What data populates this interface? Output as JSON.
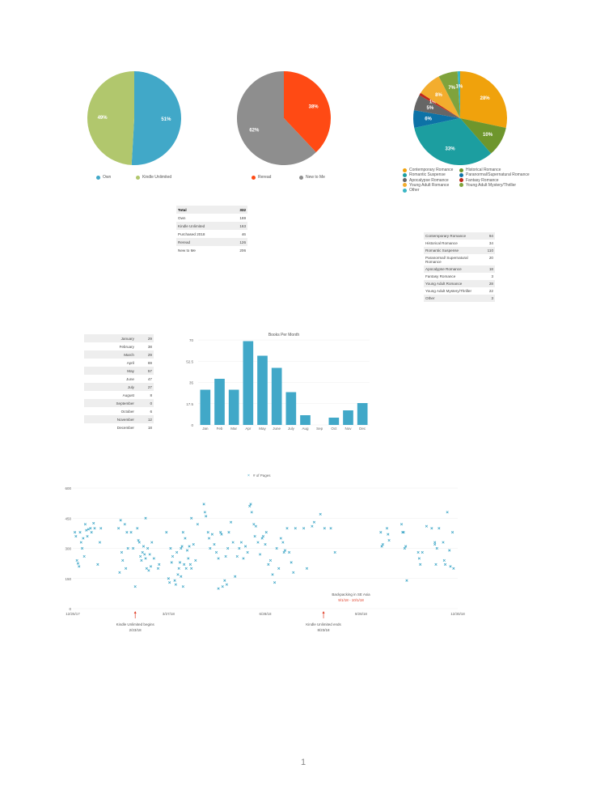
{
  "pies": [
    {
      "slices": [
        {
          "label": "Own",
          "value": 169,
          "pct": "51%",
          "color": "#41A8C8"
        },
        {
          "label": "Kindle Unlimited",
          "value": 163,
          "pct": "49%",
          "color": "#B1C76D"
        }
      ]
    },
    {
      "slices": [
        {
          "label": "Reread",
          "value": 126,
          "pct": "38%",
          "color": "#FF4A14"
        },
        {
          "label": "New to Me",
          "value": 206,
          "pct": "62%",
          "color": "#8E8E8E"
        }
      ]
    },
    {
      "slices": [
        {
          "label": "Contemporary Romance",
          "value": 94,
          "pct": "28%",
          "color": "#F0A20C"
        },
        {
          "label": "Historical Romance",
          "value": 34,
          "pct": "10%",
          "color": "#6E962C"
        },
        {
          "label": "Romantic Suspense",
          "value": 110,
          "pct": "33%",
          "color": "#1C9EA0"
        },
        {
          "label": "Paranormal/Supernatural Romance",
          "value": 20,
          "pct": "6%",
          "color": "#0D72A6"
        },
        {
          "label": "Apocalypse Romance",
          "value": 18,
          "pct": "5%",
          "color": "#666666"
        },
        {
          "label": "Fantasy Romance",
          "value": 3,
          "pct": "1%",
          "color": "#C0281B"
        },
        {
          "label": "Young Adult Romance",
          "value": 28,
          "pct": "8%",
          "color": "#F3AD2E"
        },
        {
          "label": "Young Adult Mystery/Thriller",
          "value": 22,
          "pct": "7%",
          "color": "#7FA33C"
        },
        {
          "label": "Other",
          "value": 3,
          "pct": "1%",
          "color": "#3AB6C4"
        }
      ]
    }
  ],
  "summary_table": [
    [
      "Total",
      "332"
    ],
    [
      "Own",
      "169"
    ],
    [
      "Kindle Unlimited",
      "163"
    ],
    [
      "Purchased 2018",
      "46"
    ],
    [
      "Reread",
      "126"
    ],
    [
      "New to Me",
      "206"
    ]
  ],
  "genre_table": [
    [
      "Contemporary Romance",
      "94"
    ],
    [
      "Historical Romance",
      "34"
    ],
    [
      "Romantic Suspense",
      "110"
    ],
    [
      "Paranormal/ Supernatural Romance",
      "20"
    ],
    [
      "Apocalypse Romance",
      "18"
    ],
    [
      "Fantasy Romance",
      "3"
    ],
    [
      "Young Adult Romance",
      "28"
    ],
    [
      "Young Adult Mystery/Thriller",
      "22"
    ],
    [
      "Other",
      "3"
    ]
  ],
  "month_table": [
    [
      "January",
      "29"
    ],
    [
      "February",
      "38"
    ],
    [
      "March",
      "29"
    ],
    [
      "April",
      "69"
    ],
    [
      "May",
      "57"
    ],
    [
      "June",
      "47"
    ],
    [
      "July",
      "27"
    ],
    [
      "August",
      "8"
    ],
    [
      "September",
      "0"
    ],
    [
      "October",
      "6"
    ],
    [
      "November",
      "12"
    ],
    [
      "December",
      "18"
    ]
  ],
  "chart_data": [
    {
      "type": "bar",
      "title": "Books Per Month",
      "categories": [
        "Jan",
        "Feb",
        "Mar",
        "Apr",
        "May",
        "June",
        "July",
        "Aug",
        "Sep",
        "Oct",
        "Nov",
        "Dec"
      ],
      "values": [
        29,
        38,
        29,
        69,
        57,
        47,
        27,
        8,
        0,
        6,
        12,
        18
      ],
      "yticks": [
        "0",
        "17.5",
        "35",
        "52.5",
        "70"
      ],
      "ylim": [
        0,
        70
      ],
      "color": "#41A8C8",
      "grid": true
    },
    {
      "type": "scatter",
      "legend": "# of Pages",
      "legend_position": "top-center",
      "ylim": [
        0,
        600
      ],
      "yticks": [
        "0",
        "150",
        "300",
        "450",
        "600"
      ],
      "xlim_days": [
        0,
        370
      ],
      "xticks": [
        {
          "label": "12/25/17",
          "day": 0
        },
        {
          "label": "3/27/18",
          "day": 92
        },
        {
          "label": "6/28/18",
          "day": 185
        },
        {
          "label": "9/28/18",
          "day": 277
        },
        {
          "label": "12/30/18",
          "day": 370
        }
      ],
      "annotations": [
        {
          "label": "Kindle Unlimited begins",
          "date": "2/23/18",
          "day": 60
        },
        {
          "label": "Kindle Unlimited ends",
          "date": "8/23/18",
          "day": 241
        }
      ],
      "range_note": {
        "label": "Backpacking in SE Asia",
        "dates": "9/1/18 - 10/1/18"
      },
      "color": "#41A8C8",
      "points": [
        [
          2,
          380
        ],
        [
          3,
          360
        ],
        [
          4,
          240
        ],
        [
          5,
          225
        ],
        [
          6,
          210
        ],
        [
          7,
          380
        ],
        [
          8,
          330
        ],
        [
          9,
          300
        ],
        [
          10,
          350
        ],
        [
          11,
          260
        ],
        [
          12,
          420
        ],
        [
          13,
          390
        ],
        [
          14,
          360
        ],
        [
          15,
          395
        ],
        [
          17,
          400
        ],
        [
          18,
          380
        ],
        [
          20,
          425
        ],
        [
          21,
          400
        ],
        [
          24,
          220
        ],
        [
          26,
          330
        ],
        [
          27,
          400
        ],
        [
          44,
          400
        ],
        [
          45,
          180
        ],
        [
          46,
          440
        ],
        [
          47,
          280
        ],
        [
          48,
          240
        ],
        [
          50,
          420
        ],
        [
          51,
          200
        ],
        [
          52,
          380
        ],
        [
          53,
          300
        ],
        [
          56,
          380
        ],
        [
          58,
          300
        ],
        [
          60,
          110
        ],
        [
          62,
          400
        ],
        [
          63,
          340
        ],
        [
          64,
          330
        ],
        [
          65,
          260
        ],
        [
          66,
          240
        ],
        [
          67,
          280
        ],
        [
          68,
          310
        ],
        [
          69,
          270
        ],
        [
          70,
          450
        ],
        [
          70,
          250
        ],
        [
          71,
          200
        ],
        [
          72,
          300
        ],
        [
          73,
          190
        ],
        [
          74,
          270
        ],
        [
          75,
          210
        ],
        [
          76,
          330
        ],
        [
          78,
          250
        ],
        [
          82,
          200
        ],
        [
          83,
          220
        ],
        [
          90,
          380
        ],
        [
          92,
          150
        ],
        [
          93,
          130
        ],
        [
          94,
          300
        ],
        [
          95,
          230
        ],
        [
          96,
          260
        ],
        [
          98,
          140
        ],
        [
          99,
          120
        ],
        [
          100,
          280
        ],
        [
          101,
          170
        ],
        [
          102,
          200
        ],
        [
          103,
          230
        ],
        [
          104,
          300
        ],
        [
          104,
          160
        ],
        [
          105,
          310
        ],
        [
          106,
          380
        ],
        [
          106,
          110
        ],
        [
          107,
          220
        ],
        [
          108,
          350
        ],
        [
          109,
          200
        ],
        [
          110,
          290
        ],
        [
          111,
          250
        ],
        [
          112,
          310
        ],
        [
          113,
          220
        ],
        [
          114,
          450
        ],
        [
          114,
          200
        ],
        [
          116,
          320
        ],
        [
          118,
          240
        ],
        [
          120,
          420
        ],
        [
          126,
          520
        ],
        [
          127,
          480
        ],
        [
          128,
          460
        ],
        [
          130,
          380
        ],
        [
          131,
          350
        ],
        [
          132,
          300
        ],
        [
          134,
          370
        ],
        [
          136,
          320
        ],
        [
          138,
          280
        ],
        [
          140,
          250
        ],
        [
          140,
          100
        ],
        [
          142,
          380
        ],
        [
          143,
          370
        ],
        [
          144,
          110
        ],
        [
          146,
          140
        ],
        [
          147,
          260
        ],
        [
          148,
          120
        ],
        [
          149,
          300
        ],
        [
          150,
          380
        ],
        [
          152,
          430
        ],
        [
          154,
          330
        ],
        [
          156,
          160
        ],
        [
          158,
          260
        ],
        [
          160,
          300
        ],
        [
          162,
          330
        ],
        [
          164,
          250
        ],
        [
          166,
          310
        ],
        [
          168,
          280
        ],
        [
          170,
          510
        ],
        [
          171,
          520
        ],
        [
          172,
          480
        ],
        [
          174,
          420
        ],
        [
          175,
          360
        ],
        [
          176,
          410
        ],
        [
          178,
          330
        ],
        [
          180,
          270
        ],
        [
          182,
          350
        ],
        [
          183,
          360
        ],
        [
          185,
          320
        ],
        [
          186,
          380
        ],
        [
          188,
          220
        ],
        [
          190,
          240
        ],
        [
          192,
          170
        ],
        [
          194,
          130
        ],
        [
          196,
          300
        ],
        [
          198,
          200
        ],
        [
          200,
          350
        ],
        [
          202,
          330
        ],
        [
          203,
          280
        ],
        [
          204,
          290
        ],
        [
          206,
          400
        ],
        [
          208,
          280
        ],
        [
          210,
          230
        ],
        [
          212,
          180
        ],
        [
          214,
          400
        ],
        [
          222,
          400
        ],
        [
          225,
          200
        ],
        [
          230,
          410
        ],
        [
          232,
          430
        ],
        [
          238,
          470
        ],
        [
          242,
          400
        ],
        [
          248,
          400
        ],
        [
          252,
          280
        ],
        [
          296,
          380
        ],
        [
          297,
          310
        ],
        [
          298,
          320
        ],
        [
          302,
          400
        ],
        [
          303,
          370
        ],
        [
          304,
          340
        ],
        [
          316,
          420
        ],
        [
          317,
          380
        ],
        [
          318,
          380
        ],
        [
          319,
          300
        ],
        [
          320,
          310
        ],
        [
          321,
          140
        ],
        [
          332,
          280
        ],
        [
          333,
          250
        ],
        [
          334,
          220
        ],
        [
          336,
          280
        ],
        [
          340,
          410
        ],
        [
          345,
          400
        ],
        [
          348,
          320
        ],
        [
          348,
          330
        ],
        [
          349,
          220
        ],
        [
          350,
          300
        ],
        [
          352,
          400
        ],
        [
          356,
          330
        ],
        [
          357,
          240
        ],
        [
          358,
          220
        ],
        [
          360,
          480
        ],
        [
          362,
          290
        ],
        [
          363,
          210
        ],
        [
          365,
          380
        ],
        [
          366,
          200
        ]
      ]
    }
  ],
  "page_number": "1"
}
